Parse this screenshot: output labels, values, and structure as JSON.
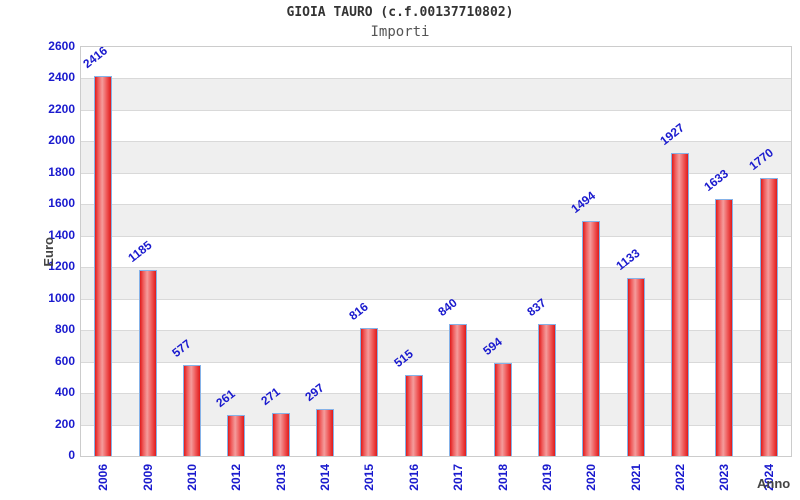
{
  "header": {
    "title": "GIOIA TAURO (c.f.00137710802)",
    "subtitle": "Importi"
  },
  "chart_data": {
    "type": "bar",
    "title": "GIOIA TAURO (c.f.00137710802)",
    "subtitle": "Importi",
    "xlabel": "Anno",
    "ylabel": "Euro",
    "categories": [
      "2006",
      "2009",
      "2010",
      "2012",
      "2013",
      "2014",
      "2015",
      "2016",
      "2017",
      "2018",
      "2019",
      "2020",
      "2021",
      "2022",
      "2023",
      "2024"
    ],
    "values": [
      2416,
      1185,
      577,
      261,
      271,
      297,
      816,
      515,
      840,
      594,
      837,
      1494,
      1133,
      1927,
      1633,
      1770
    ],
    "ylim": [
      0,
      2600
    ],
    "ytick_step": 200,
    "grid": true,
    "legend": "none",
    "band_colors": [
      "#ffffff",
      "#efefef"
    ],
    "colors": {
      "bar_edge": "#e01b1b",
      "bar_center": "#f49c9c",
      "bar_border": "#85b2e8",
      "label_blue": "#1a1ace",
      "gridline": "#d9d9d9",
      "title": "#333333",
      "subtitle": "#555555",
      "axis_title": "#444444"
    }
  }
}
